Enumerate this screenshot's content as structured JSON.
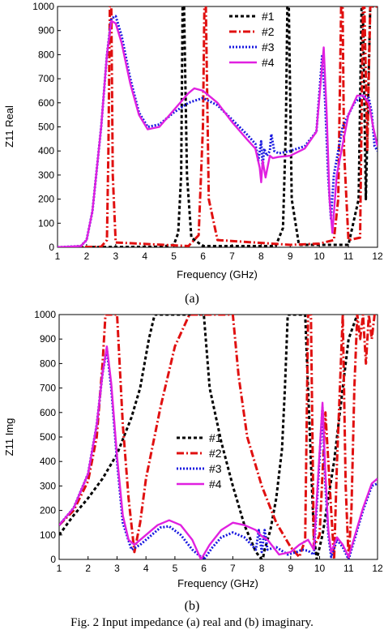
{
  "figure": {
    "panel_a_label": "(a)",
    "panel_b_label": "(b)",
    "caption": "Fig. 2 Input impedance (a) real and (b) imaginary."
  },
  "styles": {
    "#1": {
      "color": "#000000",
      "dash": "4 3",
      "width": 3
    },
    "#2": {
      "color": "#e01010",
      "dash": "9 3 2 3",
      "width": 3
    },
    "#3": {
      "color": "#1818e0",
      "dash": "2 2",
      "width": 3
    },
    "#4": {
      "color": "#e020e0",
      "dash": "",
      "width": 2.4
    }
  },
  "chart_data": [
    {
      "type": "line",
      "title": "",
      "xlabel": "Frequency (GHz)",
      "ylabel": "Z11 Real",
      "xlim": [
        1,
        12
      ],
      "ylim": [
        0,
        1000
      ],
      "xticks": [
        1,
        2,
        3,
        4,
        5,
        6,
        7,
        8,
        9,
        10,
        11,
        12
      ],
      "yticks": [
        0,
        100,
        200,
        300,
        400,
        500,
        600,
        700,
        800,
        900,
        1000
      ],
      "legend": {
        "position": "top-right",
        "entries": [
          "#1",
          "#2",
          "#3",
          "#4"
        ]
      },
      "series": [
        {
          "name": "#1",
          "x": [
            1,
            4.5,
            5.0,
            5.15,
            5.25,
            5.3,
            5.35,
            5.45,
            5.6,
            6.0,
            8.5,
            8.75,
            8.85,
            8.9,
            8.95,
            9.05,
            9.3,
            11.0,
            11.35,
            11.45,
            11.5,
            11.6,
            11.75,
            12
          ],
          "y": [
            0,
            2,
            10,
            60,
            300,
            1000,
            1000,
            300,
            40,
            5,
            5,
            80,
            500,
            1000,
            1000,
            200,
            10,
            10,
            200,
            1000,
            1000,
            200,
            1000,
            1000
          ]
        },
        {
          "name": "#2",
          "x": [
            1,
            2.5,
            2.7,
            2.75,
            2.8,
            2.85,
            2.9,
            3.0,
            5.5,
            5.85,
            6.0,
            6.05,
            6.1,
            6.2,
            6.5,
            9.0,
            10.0,
            10.5,
            10.65,
            10.75,
            10.8,
            10.85,
            11.0,
            11.4,
            11.5,
            11.55,
            11.65,
            11.75,
            11.85,
            12
          ],
          "y": [
            0,
            2,
            30,
            400,
            1000,
            1000,
            300,
            20,
            5,
            50,
            500,
            1000,
            1000,
            200,
            30,
            10,
            15,
            30,
            200,
            1000,
            1000,
            400,
            30,
            40,
            1000,
            1000,
            400,
            1000,
            1000,
            1000
          ]
        },
        {
          "name": "#3",
          "x": [
            1,
            1.8,
            2.0,
            2.2,
            2.5,
            2.7,
            2.85,
            3.0,
            3.2,
            3.5,
            3.8,
            4.1,
            4.5,
            5.0,
            5.5,
            6.0,
            6.5,
            7.0,
            7.5,
            7.8,
            7.9,
            8.0,
            8.05,
            8.1,
            8.2,
            8.3,
            8.35,
            8.45,
            8.6,
            9.0,
            9.5,
            9.9,
            10.1,
            10.2,
            10.3,
            10.4,
            10.5,
            10.8,
            11.2,
            11.5,
            11.7,
            11.8,
            11.9,
            12
          ],
          "y": [
            0,
            5,
            30,
            150,
            500,
            800,
            950,
            960,
            880,
            700,
            560,
            500,
            510,
            560,
            600,
            620,
            590,
            530,
            470,
            430,
            360,
            440,
            330,
            410,
            380,
            400,
            470,
            400,
            390,
            400,
            420,
            480,
            800,
            600,
            300,
            120,
            300,
            500,
            600,
            630,
            620,
            560,
            420,
            400
          ]
        },
        {
          "name": "#4",
          "x": [
            1,
            1.8,
            2.0,
            2.2,
            2.5,
            2.7,
            2.85,
            3.0,
            3.2,
            3.5,
            3.8,
            4.1,
            4.5,
            5.0,
            5.5,
            5.7,
            6.0,
            6.5,
            7.0,
            7.5,
            7.8,
            7.95,
            8.0,
            8.05,
            8.15,
            8.25,
            8.3,
            8.4,
            8.6,
            9.0,
            9.5,
            9.9,
            10.15,
            10.25,
            10.35,
            10.45,
            10.6,
            11.0,
            11.3,
            11.5,
            11.7,
            11.85,
            12
          ],
          "y": [
            0,
            5,
            30,
            150,
            500,
            800,
            940,
            930,
            850,
            680,
            550,
            490,
            500,
            570,
            640,
            660,
            650,
            600,
            520,
            450,
            410,
            330,
            270,
            360,
            290,
            350,
            380,
            370,
            375,
            380,
            410,
            480,
            830,
            560,
            200,
            60,
            300,
            550,
            630,
            630,
            600,
            500,
            420
          ]
        }
      ]
    },
    {
      "type": "line",
      "title": "",
      "xlabel": "Frequency (GHz)",
      "ylabel": "Z11 Img",
      "xlim": [
        1,
        12
      ],
      "ylim": [
        0,
        1000
      ],
      "xticks": [
        1,
        2,
        3,
        4,
        5,
        6,
        7,
        8,
        9,
        10,
        11,
        12
      ],
      "yticks": [
        0,
        100,
        200,
        300,
        400,
        500,
        600,
        700,
        800,
        900,
        1000
      ],
      "legend": {
        "position": "center-left",
        "entries": [
          "#1",
          "#2",
          "#3",
          "#4"
        ]
      },
      "series": [
        {
          "name": "#1",
          "x": [
            1,
            1.5,
            2.0,
            2.5,
            3.0,
            3.5,
            3.8,
            4.1,
            4.3,
            6.0,
            6.2,
            6.6,
            7.0,
            7.4,
            7.8,
            8.0,
            8.05,
            8.1,
            8.2,
            8.3,
            8.5,
            8.7,
            8.8,
            8.9,
            9.5,
            9.7,
            9.8,
            9.9,
            10.1,
            10.5,
            10.8,
            11.0,
            11.3
          ],
          "y": [
            100,
            180,
            250,
            330,
            430,
            580,
            700,
            900,
            1000,
            1000,
            700,
            480,
            300,
            140,
            30,
            0,
            10,
            40,
            80,
            120,
            250,
            450,
            700,
            1000,
            1000,
            400,
            100,
            0,
            100,
            400,
            700,
            900,
            1000
          ]
        },
        {
          "name": "#2",
          "x": [
            1,
            1.5,
            2.0,
            2.3,
            2.5,
            2.6,
            2.7,
            2.8,
            3.0,
            3.2,
            3.4,
            3.6,
            3.8,
            4.0,
            4.5,
            5.0,
            5.5,
            5.8,
            6.0,
            6.4,
            6.8,
            7.0,
            7.2,
            7.5,
            8.0,
            8.5,
            9.0,
            9.3,
            9.5,
            9.6,
            9.7,
            9.8,
            10.0,
            10.2,
            10.4,
            10.5,
            10.6,
            10.8,
            10.9,
            11.0,
            11.1,
            11.2,
            11.3,
            11.4,
            11.5,
            11.6,
            11.7,
            11.8,
            11.9,
            12
          ],
          "y": [
            140,
            200,
            320,
            500,
            800,
            1000,
            1000,
            1000,
            1000,
            550,
            250,
            30,
            150,
            330,
            620,
            870,
            1000,
            1000,
            1000,
            1000,
            1000,
            1000,
            750,
            500,
            300,
            150,
            50,
            10,
            80,
            1000,
            1000,
            50,
            100,
            600,
            200,
            0,
            400,
            1000,
            300,
            0,
            200,
            700,
            1000,
            900,
            1000,
            800,
            1000,
            900,
            1000,
            1000
          ]
        },
        {
          "name": "#3",
          "x": [
            1,
            1.5,
            2.0,
            2.3,
            2.5,
            2.65,
            2.8,
            3.0,
            3.2,
            3.5,
            3.8,
            4.2,
            4.5,
            4.8,
            5.2,
            5.6,
            6.0,
            6.3,
            6.6,
            7.0,
            7.4,
            7.8,
            7.9,
            8.0,
            8.1,
            8.2,
            8.5,
            8.9,
            9.2,
            9.4,
            9.6,
            9.8,
            10.1,
            10.2,
            10.3,
            10.4,
            10.6,
            10.8,
            11.0,
            11.2,
            11.5,
            11.8,
            12
          ],
          "y": [
            140,
            210,
            350,
            550,
            760,
            860,
            700,
            400,
            150,
            40,
            60,
            100,
            130,
            135,
            100,
            40,
            0,
            50,
            90,
            110,
            90,
            40,
            120,
            30,
            120,
            40,
            50,
            20,
            30,
            40,
            35,
            20,
            620,
            300,
            100,
            10,
            80,
            50,
            0,
            80,
            200,
            300,
            310
          ]
        },
        {
          "name": "#4",
          "x": [
            1,
            1.5,
            2.0,
            2.3,
            2.5,
            2.65,
            2.8,
            3.0,
            3.2,
            3.4,
            3.6,
            4.0,
            4.4,
            4.8,
            5.2,
            5.6,
            5.9,
            6.2,
            6.6,
            7.0,
            7.4,
            7.8,
            8.0,
            8.2,
            8.6,
            9.0,
            9.3,
            9.6,
            9.8,
            10.1,
            10.2,
            10.3,
            10.4,
            10.6,
            10.8,
            11.0,
            11.2,
            11.5,
            11.8,
            12
          ],
          "y": [
            140,
            210,
            350,
            550,
            760,
            870,
            720,
            420,
            180,
            80,
            60,
            100,
            140,
            160,
            140,
            80,
            0,
            60,
            120,
            150,
            140,
            120,
            95,
            80,
            20,
            30,
            60,
            80,
            40,
            640,
            350,
            120,
            30,
            90,
            60,
            10,
            90,
            210,
            310,
            330
          ]
        }
      ]
    }
  ]
}
